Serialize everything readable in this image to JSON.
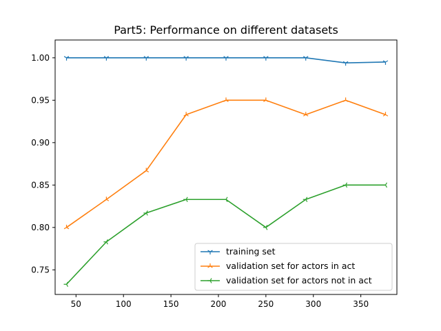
{
  "chart_data": {
    "type": "line",
    "title": "Part5: Performance on different datasets",
    "xlabel": "",
    "ylabel": "",
    "xlim": [
      28,
      388
    ],
    "ylim": [
      0.721,
      1.021
    ],
    "xticks": [
      50,
      100,
      150,
      200,
      250,
      300,
      350
    ],
    "yticks": [
      0.75,
      0.8,
      0.85,
      0.9,
      0.95,
      1.0
    ],
    "grid": false,
    "legend_position": "lower-right",
    "x": [
      40,
      82,
      124,
      166,
      208,
      250,
      292,
      334,
      376
    ],
    "series": [
      {
        "name": "training set",
        "color": "#1f77b4",
        "marker": "tri_down",
        "values": [
          1.0,
          1.0,
          1.0,
          1.0,
          1.0,
          1.0,
          1.0,
          0.994,
          0.995
        ]
      },
      {
        "name": "validation set for actors in act",
        "color": "#ff7f0e",
        "marker": "tri_up",
        "values": [
          0.8,
          0.833,
          0.867,
          0.933,
          0.95,
          0.95,
          0.933,
          0.95,
          0.933
        ]
      },
      {
        "name": "validation set for actors not in act",
        "color": "#2ca02c",
        "marker": "tri_left",
        "values": [
          0.733,
          0.783,
          0.817,
          0.833,
          0.833,
          0.8,
          0.833,
          0.85,
          0.85
        ]
      }
    ]
  }
}
